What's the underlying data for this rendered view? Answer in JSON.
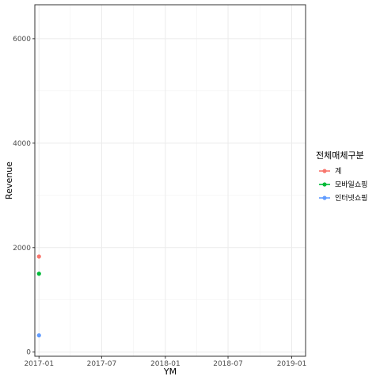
{
  "chart_data": {
    "type": "scatter",
    "xlabel": "YM",
    "ylabel": "Revenue",
    "x_ticks": [
      "2017-01",
      "2017-07",
      "2018-01",
      "2018-07",
      "2019-01"
    ],
    "y_ticks": [
      0,
      2000,
      4000,
      6000
    ],
    "xlim": [
      "2016-12-20",
      "2019-02-10"
    ],
    "ylim": [
      -80,
      6650
    ],
    "grid": true,
    "legend": {
      "title": "전체매체구분",
      "position": "right"
    },
    "series": [
      {
        "name": "계",
        "color": "#F8766D",
        "points": [
          {
            "x": "2017-01",
            "y": 1830
          }
        ]
      },
      {
        "name": "모바일쇼핑",
        "color": "#00BA38",
        "points": [
          {
            "x": "2017-01",
            "y": 1500
          }
        ]
      },
      {
        "name": "인터넷쇼핑",
        "color": "#619CFF",
        "points": [
          {
            "x": "2017-01",
            "y": 320
          }
        ]
      }
    ]
  }
}
